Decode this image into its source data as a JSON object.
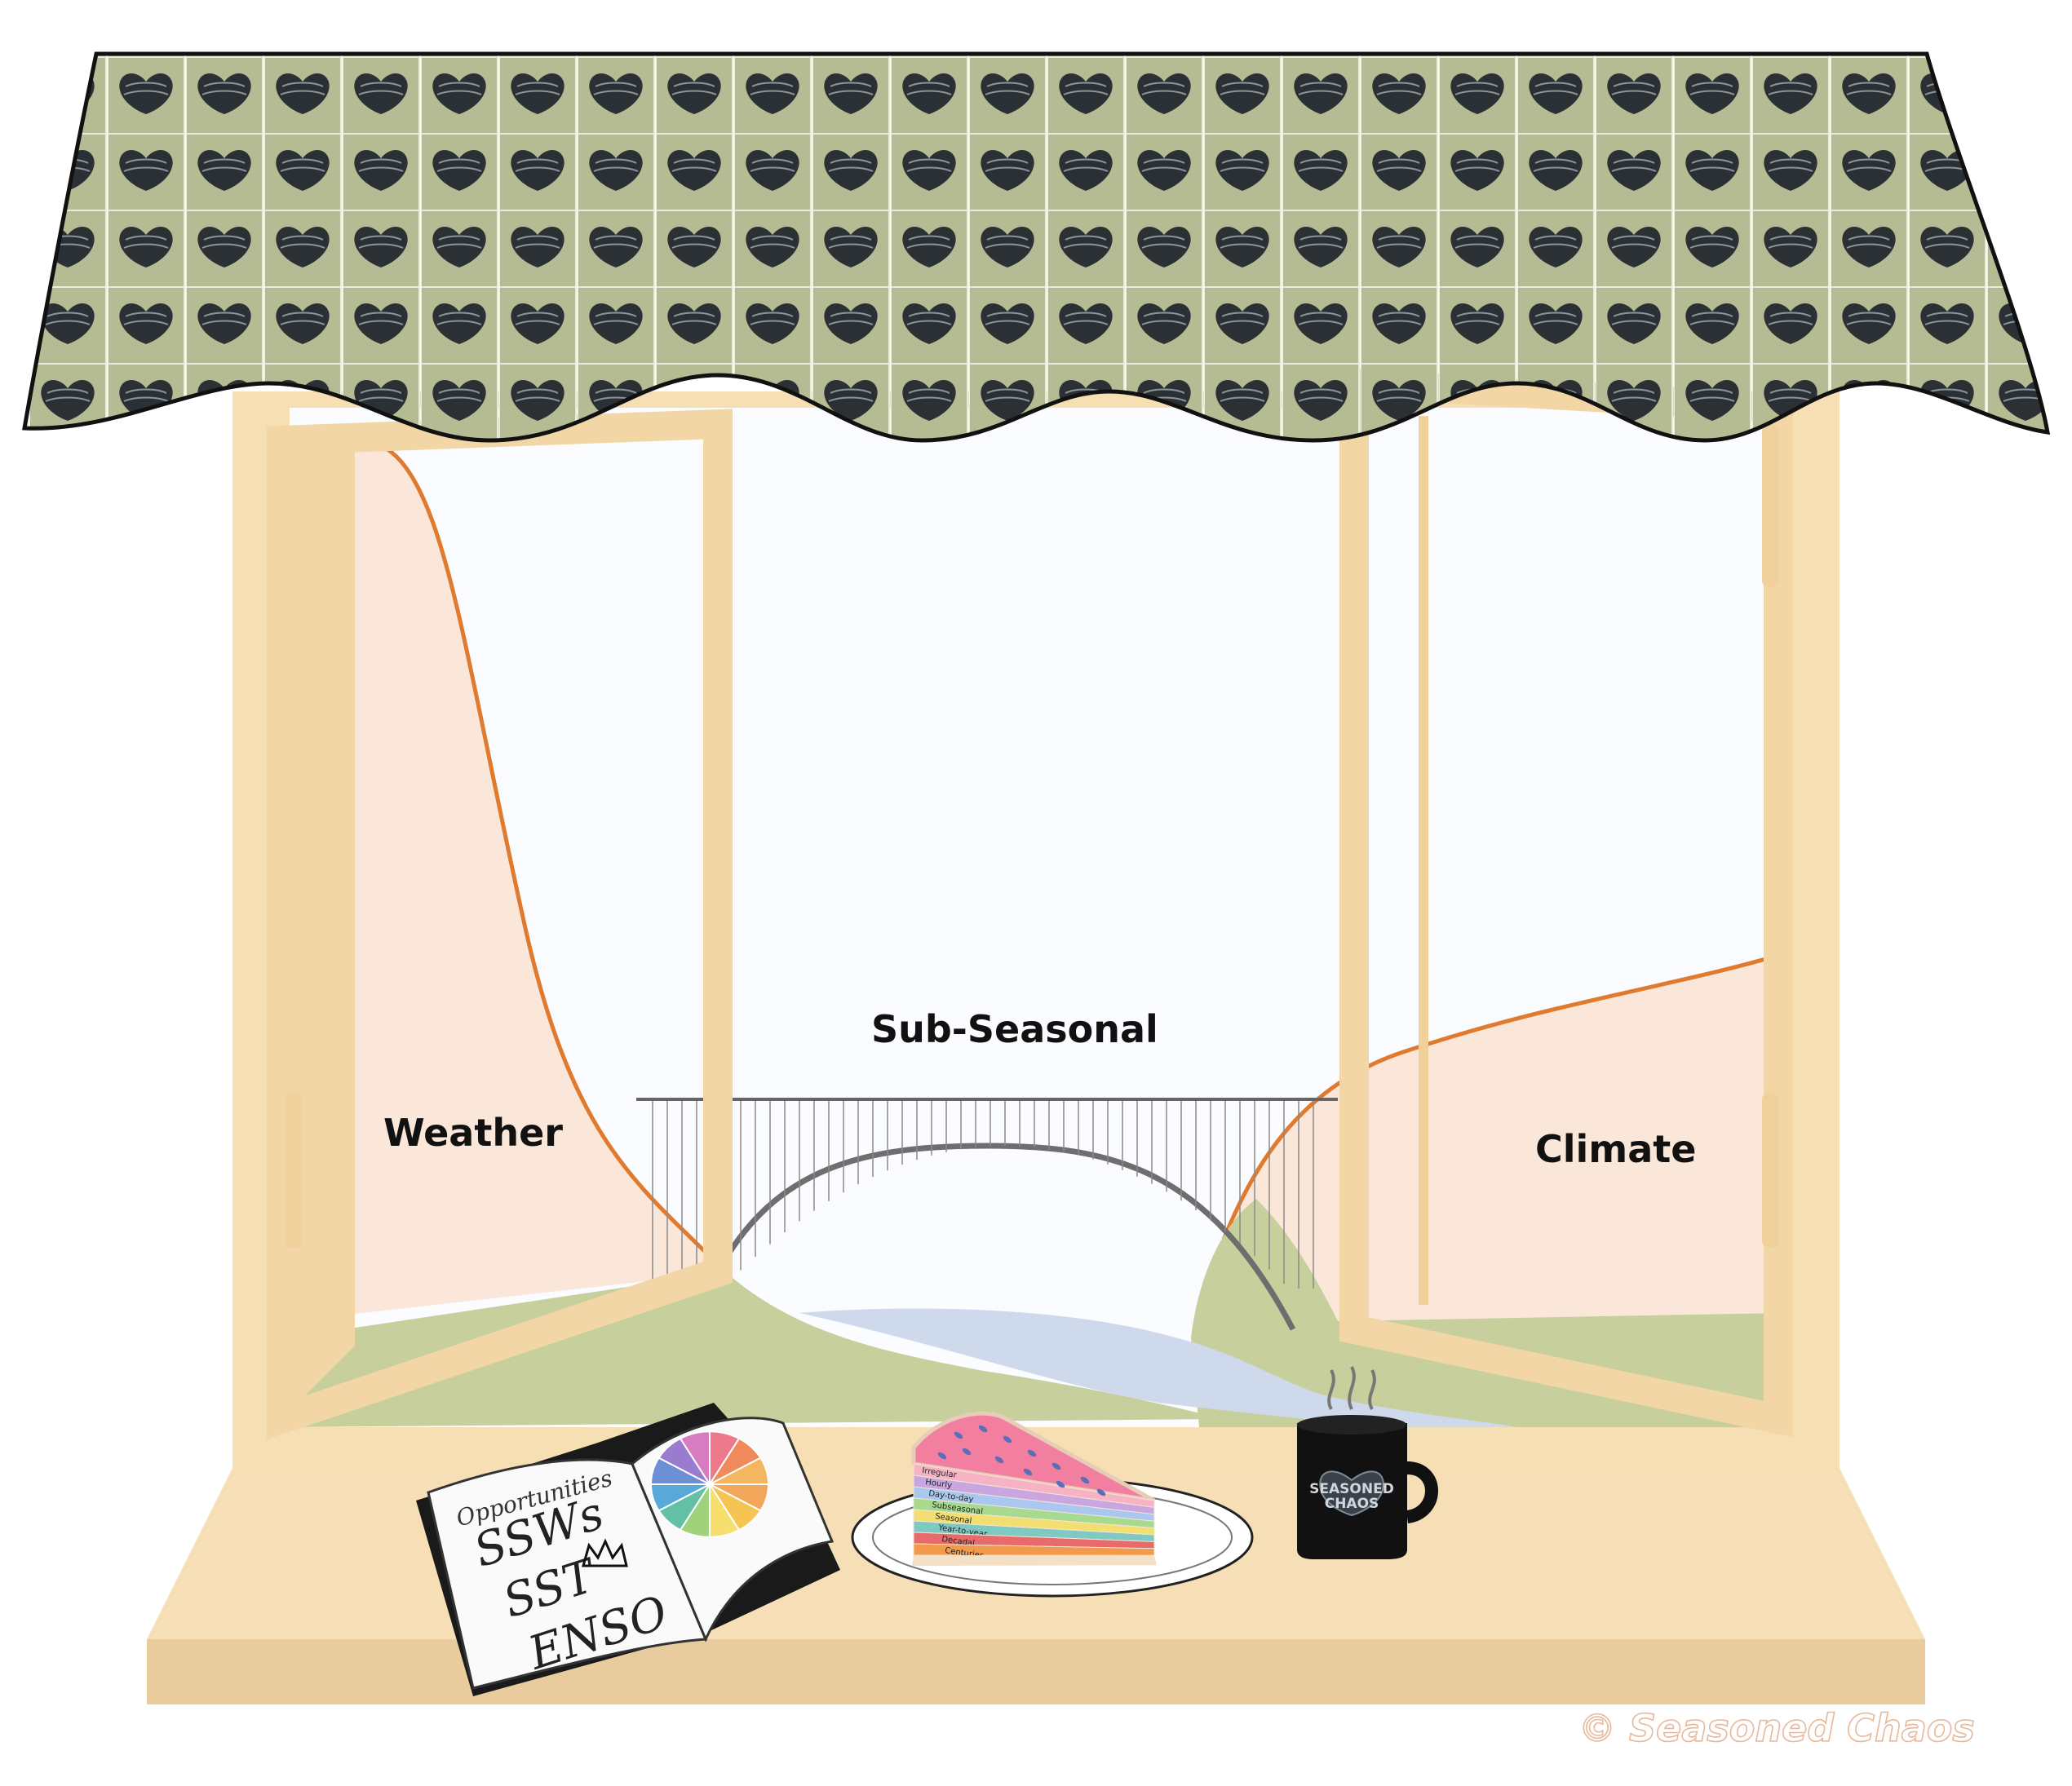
{
  "regions": {
    "weather": "Weather",
    "subseasonal": "Sub-Seasonal",
    "climate": "Climate"
  },
  "book": {
    "title": "Opportunities",
    "items": [
      "SSWs",
      "SST",
      "ENSO"
    ]
  },
  "pie_layers": [
    "Irregular",
    "Hourly",
    "Day-to-day",
    "Subseasonal",
    "Seasonal",
    "Year-to-year",
    "Decadal",
    "Centuries"
  ],
  "logo": {
    "line1": "SEASONED",
    "line2": "CHAOS"
  },
  "copyright": "© Seasoned Chaos",
  "colors": {
    "awning": "#b5bb93",
    "frame": "#f7dfb4",
    "orange_curve": "#e07a2e",
    "hill": "#c7cf9c",
    "river": "#cfd9ec",
    "pink_fill": "#fbe7da",
    "sill": "#f6dfb6",
    "pie_top": "#f27f9f"
  },
  "icons": [
    "awning-pattern-logo",
    "open-book-icon",
    "color-wheel-icon",
    "crown-icon",
    "pie-slice-icon",
    "plate-icon",
    "coffee-mug-icon",
    "steam-icon",
    "bridge-icon"
  ]
}
